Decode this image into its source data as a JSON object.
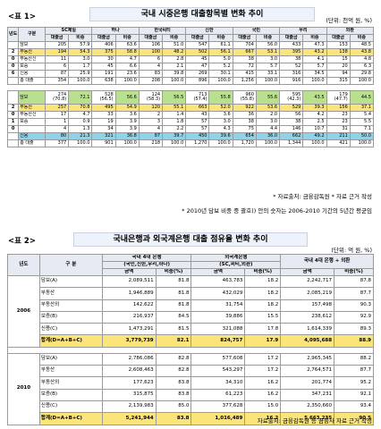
{
  "t1": {
    "tag": "<표 1>",
    "title": "국내 시중은행 대출항목별 변화 추이",
    "unit": "(단위: 천억 원, %)",
    "hdr": {
      "year": "년도",
      "cat": "구분",
      "banks": [
        "SC제일",
        "하나",
        "한국씨티",
        "신한",
        "국민",
        "우리",
        "외환"
      ],
      "amt": "대출금",
      "pct": "비중"
    },
    "s2006": [
      {
        "y": "",
        "c": "담보",
        "v": [
          "205",
          "57.9",
          "406",
          "63.6",
          "106",
          "51.0",
          "547",
          "61.1",
          "704",
          "56.0",
          "433",
          "47.3",
          "153",
          "48.5"
        ]
      },
      {
        "y": "2",
        "c": "부동산",
        "v": [
          "194",
          "54.3",
          "375",
          "58.8",
          "100",
          "48.2",
          "502",
          "56.1",
          "667",
          "53.1",
          "395",
          "43.2",
          "138",
          "43.8"
        ]
      },
      {
        "y": "0",
        "c": "부동산신",
        "v": [
          "11",
          "3.0",
          "30",
          "4.7",
          "6",
          "2.8",
          "45",
          "5.0",
          "38",
          "3.0",
          "38",
          "4.1",
          "15",
          "4.8"
        ]
      },
      {
        "y": "0",
        "c": "보증",
        "v": [
          "6",
          "1.7",
          "45",
          "6.6",
          "4",
          "2.1",
          "47",
          "5.2",
          "72",
          "5.7",
          "52",
          "5.7",
          "20",
          "6.3"
        ]
      },
      {
        "y": "6",
        "c": "신용",
        "v": [
          "87",
          "25.9",
          "191",
          "23.6",
          "83",
          "39.8",
          "269",
          "30.1",
          "415",
          "33.1",
          "316",
          "34.5",
          "94",
          "29.8"
        ]
      },
      {
        "y": "",
        "c": "총 대출",
        "v": [
          "354",
          "100.0",
          "638",
          "100.0",
          "208",
          "100.0",
          "896",
          "100.0",
          "1,256",
          "100.0",
          "916",
          "100.0",
          "315",
          "100.0"
        ]
      }
    ],
    "s2010": [
      {
        "y": "",
        "c": "담보",
        "v": [
          "274",
          "72.1",
          "528",
          "56.6",
          "124",
          "56.5",
          "713",
          "55.8",
          "960",
          "55.6",
          "595",
          "43.5",
          "179",
          "44.5"
        ],
        "p": [
          "(70.8)",
          "",
          "(56.5)",
          "",
          "(58.3)",
          "",
          "(57.4)",
          "",
          "(55.8)",
          "",
          "(42.3)",
          "",
          "(47.7)",
          ""
        ]
      },
      {
        "y": "2",
        "c": "부동산",
        "v": [
          "257",
          "70.8",
          "495",
          "54.9",
          "120",
          "55.1",
          "663",
          "52.0",
          "922",
          "53.6",
          "529",
          "39.3",
          "156",
          "37.1"
        ]
      },
      {
        "y": "0",
        "c": "부동산신",
        "v": [
          "17",
          "4.7",
          "33",
          "3.6",
          "2",
          "1.4",
          "43",
          "3.6",
          "36",
          "2.0",
          "56",
          "4.2",
          "23",
          "5.4"
        ]
      },
      {
        "y": "1",
        "c": "보증",
        "v": [
          "1",
          "0.9",
          "19",
          "3.9",
          "3",
          "1.8",
          "57",
          "3.0",
          "38",
          "3.0",
          "38",
          "2.5",
          "23",
          "5.5"
        ]
      },
      {
        "y": "0",
        "c": "",
        "v": [
          "4",
          "1.3",
          "34",
          "3.9",
          "4",
          "2.2",
          "57",
          "4.3",
          "75",
          "4.4",
          "146",
          "10.7",
          "31",
          "7.1"
        ]
      },
      {
        "y": "",
        "c": "신용",
        "v": [
          "80",
          "21.3",
          "321",
          "36.8",
          "87",
          "39.7",
          "450",
          "39.6",
          "654",
          "36.0",
          "662",
          "49.2",
          "211",
          "50.0"
        ]
      },
      {
        "y": "",
        "c": "총 대출",
        "v": [
          "377",
          "100.0",
          "901",
          "100.0",
          "218",
          "100.0",
          "1,270",
          "100.0",
          "1,720",
          "100.0",
          "1,344",
          "100.0",
          "421",
          "100.0"
        ]
      }
    ],
    "source": "* 자료출처: 금융감독원 * 자료 근거 작성",
    "note": "* 2010년 담보 비중 중 괄호() 안의 숫자는 2006-2010 기간의 5년간 평균임"
  },
  "t2": {
    "tag": "<표 2>",
    "title": "국내은행과 외국계은행 대출 점유율 변화 추이",
    "unit": "(단위: 억 원, %)",
    "hdr": {
      "year": "년도",
      "cat": "구 분",
      "g1": "국내 4대 은행",
      "g1sub": "(국민,신한,우리,하나)",
      "g2": "외국계은행",
      "g2sub": "(SC,씨티,외환)",
      "g3": "국내 4대 은행 + 외환",
      "amt": "금액",
      "pct": "비중(%)"
    },
    "y2006": "2006",
    "y2010": "2010",
    "s2006": [
      {
        "c": "담보(A)",
        "v": [
          "2,089,511",
          "81.8",
          "463,783",
          "18.2",
          "2,242,717",
          "87.8"
        ]
      },
      {
        "c": "부동산",
        "v": [
          "1,946,889",
          "81.8",
          "432,029",
          "18.2",
          "2,085,219",
          "87.7"
        ]
      },
      {
        "c": "부동산외",
        "v": [
          "142,622",
          "81.8",
          "31,754",
          "18.2",
          "157,498",
          "90.3"
        ]
      },
      {
        "c": "보증(B)",
        "v": [
          "216,937",
          "84.5",
          "39,886",
          "15.5",
          "238,612",
          "92.9"
        ]
      },
      {
        "c": "신용(C)",
        "v": [
          "1,473,291",
          "81.5",
          "321,088",
          "17.8",
          "1,614,339",
          "89.3"
        ]
      },
      {
        "c": "합계(D=A+B+C)",
        "v": [
          "3,779,739",
          "82.1",
          "824,757",
          "17.9",
          "4,095,688",
          "88.9"
        ]
      }
    ],
    "s2010": [
      {
        "c": "담보(A)",
        "v": [
          "2,786,086",
          "82.8",
          "577,608",
          "17.2",
          "2,965,345",
          "88.2"
        ]
      },
      {
        "c": "부동산",
        "v": [
          "2,608,463",
          "82.8",
          "543,297",
          "17.2",
          "2,764,571",
          "87.7"
        ]
      },
      {
        "c": "부동산외",
        "v": [
          "177,623",
          "83.8",
          "34,310",
          "16.2",
          "201,774",
          "95.2"
        ]
      },
      {
        "c": "보증(B)",
        "v": [
          "315,875",
          "83.8",
          "61,223",
          "16.2",
          "347,231",
          "92.1"
        ]
      },
      {
        "c": "신용(C)",
        "v": [
          "2,139,983",
          "85.0",
          "377,628",
          "15.0",
          "2,350,660",
          "93.4"
        ]
      },
      {
        "c": "합계(D=A+B+C)",
        "v": [
          "5,241,944",
          "83.8",
          "1,016,489",
          "16.2",
          "5,663,235",
          "90.5"
        ]
      }
    ],
    "source": "자료출처: 금융감독원 등 금융사 자료 근거 작성"
  }
}
